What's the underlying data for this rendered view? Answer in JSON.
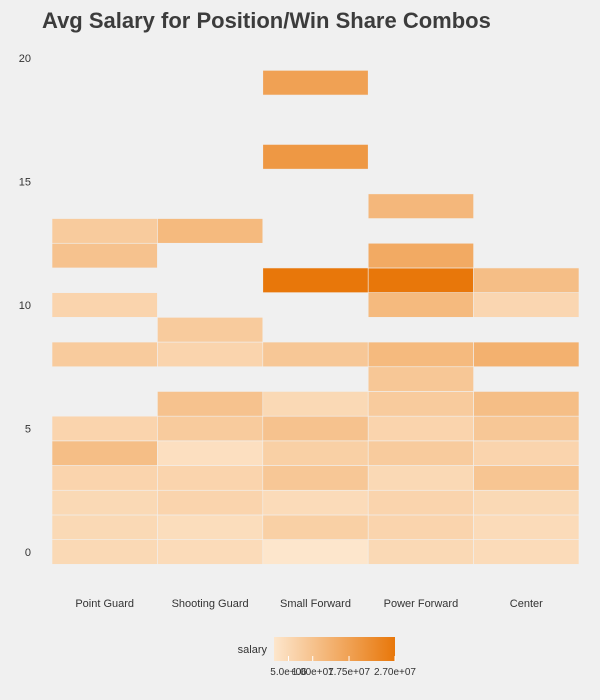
{
  "chart_data": {
    "type": "heatmap",
    "title": "Avg Salary for Position/Win Share Combos",
    "xlabel": "",
    "ylabel": "",
    "x_categories": [
      "Point Guard",
      "Shooting Guard",
      "Small Forward",
      "Power Forward",
      "Center"
    ],
    "y_ticks": [
      0,
      5,
      10,
      15,
      20
    ],
    "ylim": [
      -0.5,
      19.5
    ],
    "grid": false,
    "legend": {
      "title": "salary",
      "placement": "bottom",
      "tick_labels": [
        "5.0e+06",
        "1.00e+07",
        "1.75e+07",
        "2.70e+07"
      ],
      "tick_values": [
        5000000,
        10000000,
        17500000,
        27000000
      ],
      "range": [
        2000000,
        27000000
      ],
      "color_low": "#fde6cc",
      "color_high": "#e8770a"
    },
    "cells": [
      {
        "x": "Point Guard",
        "y": 0,
        "salary": 5000000
      },
      {
        "x": "Point Guard",
        "y": 1,
        "salary": 5000000
      },
      {
        "x": "Point Guard",
        "y": 2,
        "salary": 5000000
      },
      {
        "x": "Point Guard",
        "y": 3,
        "salary": 6000000
      },
      {
        "x": "Point Guard",
        "y": 4,
        "salary": 11000000
      },
      {
        "x": "Point Guard",
        "y": 5,
        "salary": 6000000
      },
      {
        "x": "Point Guard",
        "y": 8,
        "salary": 8000000
      },
      {
        "x": "Point Guard",
        "y": 10,
        "salary": 6000000
      },
      {
        "x": "Point Guard",
        "y": 12,
        "salary": 10000000
      },
      {
        "x": "Point Guard",
        "y": 13,
        "salary": 8000000
      },
      {
        "x": "Shooting Guard",
        "y": 0,
        "salary": 4500000
      },
      {
        "x": "Shooting Guard",
        "y": 1,
        "salary": 4000000
      },
      {
        "x": "Shooting Guard",
        "y": 2,
        "salary": 6000000
      },
      {
        "x": "Shooting Guard",
        "y": 3,
        "salary": 6000000
      },
      {
        "x": "Shooting Guard",
        "y": 4,
        "salary": 3500000
      },
      {
        "x": "Shooting Guard",
        "y": 5,
        "salary": 8000000
      },
      {
        "x": "Shooting Guard",
        "y": 6,
        "salary": 10000000
      },
      {
        "x": "Shooting Guard",
        "y": 8,
        "salary": 6000000
      },
      {
        "x": "Shooting Guard",
        "y": 9,
        "salary": 8000000
      },
      {
        "x": "Shooting Guard",
        "y": 13,
        "salary": 12000000
      },
      {
        "x": "Small Forward",
        "y": 0,
        "salary": 2000000
      },
      {
        "x": "Small Forward",
        "y": 1,
        "salary": 7000000
      },
      {
        "x": "Small Forward",
        "y": 2,
        "salary": 4500000
      },
      {
        "x": "Small Forward",
        "y": 3,
        "salary": 9000000
      },
      {
        "x": "Small Forward",
        "y": 4,
        "salary": 7000000
      },
      {
        "x": "Small Forward",
        "y": 5,
        "salary": 10000000
      },
      {
        "x": "Small Forward",
        "y": 6,
        "salary": 5000000
      },
      {
        "x": "Small Forward",
        "y": 8,
        "salary": 9000000
      },
      {
        "x": "Small Forward",
        "y": 11,
        "salary": 27000000
      },
      {
        "x": "Small Forward",
        "y": 16,
        "salary": 19500000
      },
      {
        "x": "Small Forward",
        "y": 19,
        "salary": 17500000
      },
      {
        "x": "Power Forward",
        "y": 0,
        "salary": 5000000
      },
      {
        "x": "Power Forward",
        "y": 1,
        "salary": 6000000
      },
      {
        "x": "Power Forward",
        "y": 2,
        "salary": 6000000
      },
      {
        "x": "Power Forward",
        "y": 3,
        "salary": 5000000
      },
      {
        "x": "Power Forward",
        "y": 4,
        "salary": 8000000
      },
      {
        "x": "Power Forward",
        "y": 5,
        "salary": 6000000
      },
      {
        "x": "Power Forward",
        "y": 6,
        "salary": 8000000
      },
      {
        "x": "Power Forward",
        "y": 7,
        "salary": 9000000
      },
      {
        "x": "Power Forward",
        "y": 8,
        "salary": 12000000
      },
      {
        "x": "Power Forward",
        "y": 10,
        "salary": 12000000
      },
      {
        "x": "Power Forward",
        "y": 11,
        "salary": 27000000
      },
      {
        "x": "Power Forward",
        "y": 12,
        "salary": 15500000
      },
      {
        "x": "Power Forward",
        "y": 14,
        "salary": 12500000
      },
      {
        "x": "Center",
        "y": 0,
        "salary": 4500000
      },
      {
        "x": "Center",
        "y": 1,
        "salary": 4500000
      },
      {
        "x": "Center",
        "y": 2,
        "salary": 5000000
      },
      {
        "x": "Center",
        "y": 3,
        "salary": 9500000
      },
      {
        "x": "Center",
        "y": 4,
        "salary": 6000000
      },
      {
        "x": "Center",
        "y": 5,
        "salary": 9000000
      },
      {
        "x": "Center",
        "y": 6,
        "salary": 11000000
      },
      {
        "x": "Center",
        "y": 8,
        "salary": 14000000
      },
      {
        "x": "Center",
        "y": 10,
        "salary": 5500000
      },
      {
        "x": "Center",
        "y": 11,
        "salary": 11000000
      }
    ]
  }
}
